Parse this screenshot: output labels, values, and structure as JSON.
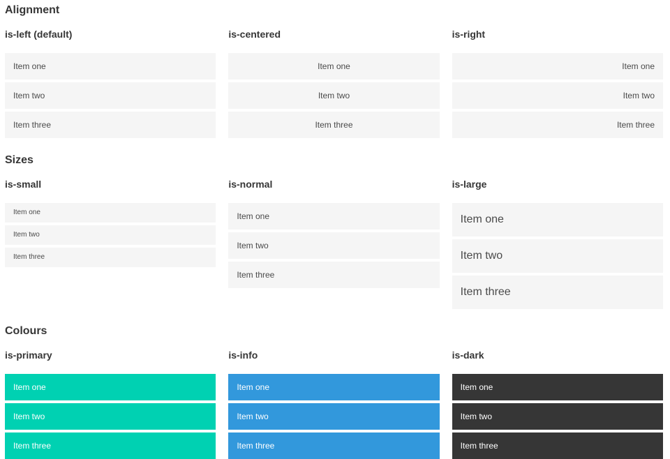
{
  "page": {
    "sections": [
      {
        "title": "Alignment",
        "columns": [
          {
            "heading": "is-left (default)",
            "items": [
              "Item one",
              "Item two",
              "Item three"
            ]
          },
          {
            "heading": "is-centered",
            "items": [
              "Item one",
              "Item two",
              "Item three"
            ]
          },
          {
            "heading": "is-right",
            "items": [
              "Item one",
              "Item two",
              "Item three"
            ]
          }
        ]
      },
      {
        "title": "Sizes",
        "columns": [
          {
            "heading": "is-small",
            "items": [
              "Item one",
              "Item two",
              "Item three"
            ]
          },
          {
            "heading": "is-normal",
            "items": [
              "Item one",
              "Item two",
              "Item three"
            ]
          },
          {
            "heading": "is-large",
            "items": [
              "Item one",
              "Item two",
              "Item three"
            ]
          }
        ]
      },
      {
        "title": "Colours",
        "columns": [
          {
            "heading": "is-primary",
            "items": [
              "Item one",
              "Item two",
              "Item three"
            ]
          },
          {
            "heading": "is-info",
            "items": [
              "Item one",
              "Item two",
              "Item three"
            ]
          },
          {
            "heading": "is-dark",
            "items": [
              "Item one",
              "Item two",
              "Item three"
            ]
          }
        ]
      }
    ],
    "colors": {
      "primary": "#00d1b2",
      "info": "#3298dc",
      "dark": "#363636",
      "item_background": "#f5f5f5",
      "item_text": "#4a4a4a",
      "heading_text": "#363636",
      "colored_item_text": "#ffffff"
    }
  }
}
